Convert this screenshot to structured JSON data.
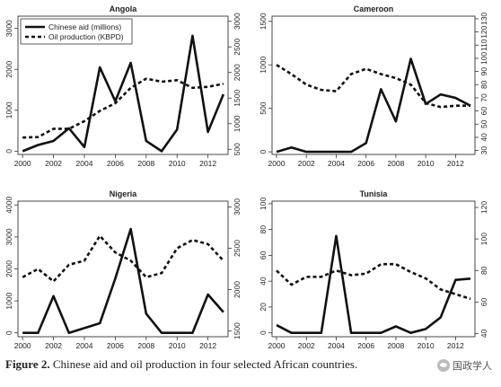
{
  "figure": {
    "caption_prefix": "Figure 2.",
    "caption_text": "Chinese aid and oil production in four selected African countries.",
    "watermark": "国政学人"
  },
  "chart_data": [
    {
      "type": "line",
      "title": "Angola",
      "x": [
        2000,
        2001,
        2002,
        2003,
        2004,
        2005,
        2006,
        2007,
        2008,
        2009,
        2010,
        2011,
        2012,
        2013
      ],
      "xticks": [
        2000,
        2002,
        2004,
        2006,
        2008,
        2010,
        2012
      ],
      "legend": "top-left",
      "series": [
        {
          "name": "Chinese aid (millions)",
          "axis": "left",
          "style": "solid",
          "values": [
            0,
            150,
            250,
            560,
            100,
            2050,
            1220,
            2160,
            250,
            0,
            530,
            2820,
            470,
            1390
          ]
        },
        {
          "name": "Oil production (KBPD)",
          "axis": "right",
          "style": "dashed",
          "values": [
            730,
            740,
            900,
            900,
            1050,
            1250,
            1400,
            1700,
            1880,
            1820,
            1850,
            1700,
            1720,
            1780
          ]
        }
      ],
      "ylim_left": [
        -80,
        3300
      ],
      "yticks_left": [
        0,
        1000,
        2000,
        3000
      ],
      "ylim_right": [
        400,
        3100
      ],
      "yticks_right": [
        500,
        1000,
        1500,
        2000,
        2500,
        3000
      ]
    },
    {
      "type": "line",
      "title": "Cameroon",
      "x": [
        2000,
        2001,
        2002,
        2003,
        2004,
        2005,
        2006,
        2007,
        2008,
        2009,
        2010,
        2011,
        2012,
        2013
      ],
      "xticks": [
        2000,
        2002,
        2004,
        2006,
        2008,
        2010,
        2012
      ],
      "series": [
        {
          "name": "Chinese aid (millions)",
          "axis": "left",
          "style": "solid",
          "values": [
            0,
            50,
            0,
            0,
            0,
            0,
            100,
            720,
            350,
            1070,
            550,
            660,
            620,
            530
          ]
        },
        {
          "name": "Oil production (KBPD)",
          "axis": "right",
          "style": "dashed",
          "values": [
            95,
            88,
            80,
            76,
            75,
            88,
            92,
            88,
            85,
            80,
            66,
            63,
            64,
            64
          ]
        }
      ],
      "ylim_left": [
        -30,
        1560
      ],
      "yticks_left": [
        0,
        500,
        1000,
        1500
      ],
      "ylim_right": [
        27,
        132
      ],
      "yticks_right": [
        30,
        40,
        50,
        60,
        70,
        80,
        90,
        100,
        110,
        120,
        130
      ]
    },
    {
      "type": "line",
      "title": "Nigeria",
      "x": [
        2000,
        2001,
        2002,
        2003,
        2004,
        2005,
        2006,
        2007,
        2008,
        2009,
        2010,
        2011,
        2012,
        2013
      ],
      "xticks": [
        2000,
        2002,
        2004,
        2006,
        2008,
        2010,
        2012
      ],
      "series": [
        {
          "name": "Chinese aid (millions)",
          "axis": "left",
          "style": "solid",
          "values": [
            0,
            0,
            1150,
            0,
            150,
            300,
            1700,
            3250,
            600,
            0,
            0,
            0,
            1200,
            650
          ]
        },
        {
          "name": "Oil production (KBPD)",
          "axis": "right",
          "style": "dashed",
          "values": [
            2150,
            2250,
            2100,
            2300,
            2350,
            2650,
            2450,
            2350,
            2150,
            2200,
            2500,
            2600,
            2550,
            2350
          ]
        }
      ],
      "ylim_left": [
        -120,
        4120
      ],
      "yticks_left": [
        0,
        1000,
        2000,
        3000,
        4000
      ],
      "ylim_right": [
        1430,
        3070
      ],
      "yticks_right": [
        1500,
        2000,
        2500,
        3000
      ]
    },
    {
      "type": "line",
      "title": "Tunisia",
      "x": [
        2000,
        2001,
        2002,
        2003,
        2004,
        2005,
        2006,
        2007,
        2008,
        2009,
        2010,
        2011,
        2012,
        2013
      ],
      "xticks": [
        2000,
        2002,
        2004,
        2006,
        2008,
        2010,
        2012
      ],
      "series": [
        {
          "name": "Chinese aid (millions)",
          "axis": "left",
          "style": "solid",
          "values": [
            6,
            0,
            0,
            0,
            75,
            0,
            0,
            0,
            5,
            0,
            3,
            12,
            41,
            42
          ]
        },
        {
          "name": "Oil production (KBPD)",
          "axis": "right",
          "style": "dashed",
          "values": [
            80,
            71,
            76,
            76,
            80,
            77,
            78,
            84,
            84,
            79,
            75,
            68,
            65,
            62
          ]
        }
      ],
      "ylim_left": [
        -3,
        102
      ],
      "yticks_left": [
        0,
        20,
        40,
        60,
        80,
        100
      ],
      "ylim_right": [
        38,
        124
      ],
      "yticks_right": [
        40,
        60,
        80,
        100,
        120
      ]
    }
  ]
}
